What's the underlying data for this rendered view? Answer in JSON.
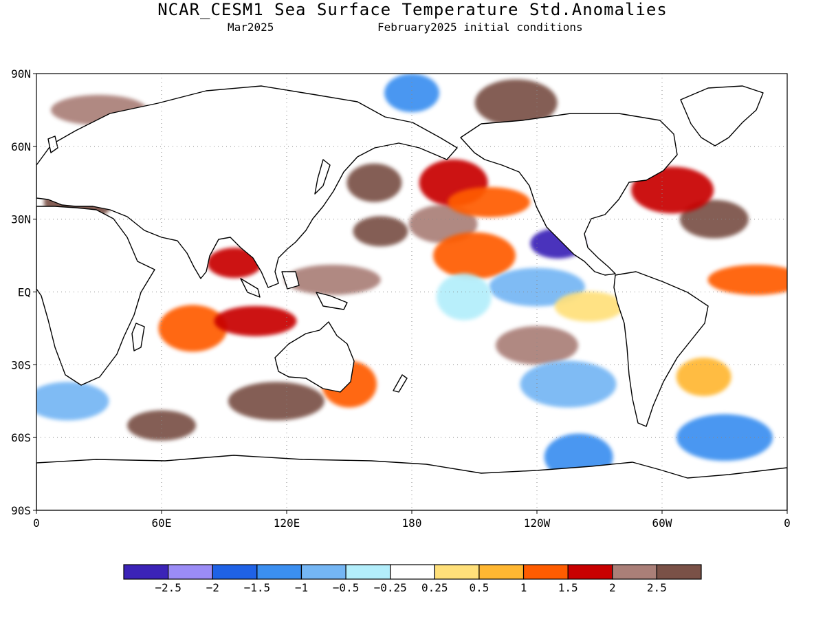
{
  "header": {
    "title": "NCAR_CESM1 Sea Surface Temperature Std.Anomalies",
    "valid": "Mar2025",
    "init": "February2025 initial conditions"
  },
  "map": {
    "lat_labels": [
      "90N",
      "60N",
      "30N",
      "EQ",
      "30S",
      "60S",
      "90S"
    ],
    "lon_labels": [
      "0",
      "60E",
      "120E",
      "180",
      "120W",
      "60W",
      "0"
    ],
    "gridlines": "dotted"
  },
  "colorbar": {
    "colors": [
      "#3b23b7",
      "#9b8cf6",
      "#1f62e6",
      "#3b8ff0",
      "#74b6f4",
      "#b3eefb",
      "#ffffff",
      "#ffe07a",
      "#ffb732",
      "#ff5c00",
      "#c80000",
      "#aa7f78",
      "#7a5147"
    ],
    "labels": [
      "-2.5",
      "-2",
      "-1.5",
      "-1",
      "-0.5",
      "-0.25",
      "0.25",
      "0.5",
      "1",
      "1.5",
      "2",
      "2.5"
    ]
  },
  "chart_data": {
    "type": "heatmap",
    "title": "NCAR_CESM1 Sea Surface Temperature Std.Anomalies",
    "subtitle": [
      "Mar2025",
      "February2025 initial conditions"
    ],
    "x": [
      "0",
      "60E",
      "120E",
      "180",
      "120W",
      "60W",
      "0"
    ],
    "y": [
      "90N",
      "60N",
      "30N",
      "EQ",
      "30S",
      "60S",
      "90S"
    ],
    "xlim": [
      0,
      360
    ],
    "ylim": [
      -90,
      90
    ],
    "colorbar_levels": [
      -2.5,
      -2,
      -1.5,
      -1,
      -0.5,
      -0.25,
      0.25,
      0.5,
      1,
      1.5,
      2,
      2.5
    ],
    "regions": [
      {
        "lon": 165,
        "lat": 25,
        "value": 2.6
      },
      {
        "lon": 195,
        "lat": 28,
        "value": 2.1
      },
      {
        "lon": 210,
        "lat": 15,
        "value": 1.2
      },
      {
        "lon": 142,
        "lat": 5,
        "value": 2.2
      },
      {
        "lon": 162,
        "lat": 45,
        "value": 2.6
      },
      {
        "lon": 200,
        "lat": 45,
        "value": 1.6
      },
      {
        "lon": 217,
        "lat": 37,
        "value": 1.1
      },
      {
        "lon": 240,
        "lat": 2,
        "value": -0.6
      },
      {
        "lon": 205,
        "lat": -2,
        "value": -0.3
      },
      {
        "lon": 265,
        "lat": -6,
        "value": 0.4
      },
      {
        "lon": 240,
        "lat": -22,
        "value": 2.0
      },
      {
        "lon": 255,
        "lat": -38,
        "value": -0.8
      },
      {
        "lon": 250,
        "lat": 20,
        "value": -2.6
      },
      {
        "lon": 325,
        "lat": 30,
        "value": 2.6
      },
      {
        "lon": 305,
        "lat": 42,
        "value": 1.7
      },
      {
        "lon": 345,
        "lat": 5,
        "value": 1.1
      },
      {
        "lon": 320,
        "lat": -35,
        "value": 0.8
      },
      {
        "lon": 75,
        "lat": -15,
        "value": 1.3
      },
      {
        "lon": 105,
        "lat": -12,
        "value": 1.7
      },
      {
        "lon": 115,
        "lat": -45,
        "value": 2.6
      },
      {
        "lon": 150,
        "lat": -38,
        "value": 1.4
      },
      {
        "lon": 60,
        "lat": -55,
        "value": 2.6
      },
      {
        "lon": 15,
        "lat": -45,
        "value": -0.7
      },
      {
        "lon": 330,
        "lat": -60,
        "value": -1.3
      },
      {
        "lon": 95,
        "lat": 12,
        "value": 1.6
      },
      {
        "lon": 20,
        "lat": 37,
        "value": 2.6
      },
      {
        "lon": 230,
        "lat": 78,
        "value": 2.6
      },
      {
        "lon": 30,
        "lat": 75,
        "value": 2.2
      },
      {
        "lon": 180,
        "lat": 82,
        "value": -1.2
      },
      {
        "lon": 260,
        "lat": -68,
        "value": -1.2
      }
    ]
  }
}
